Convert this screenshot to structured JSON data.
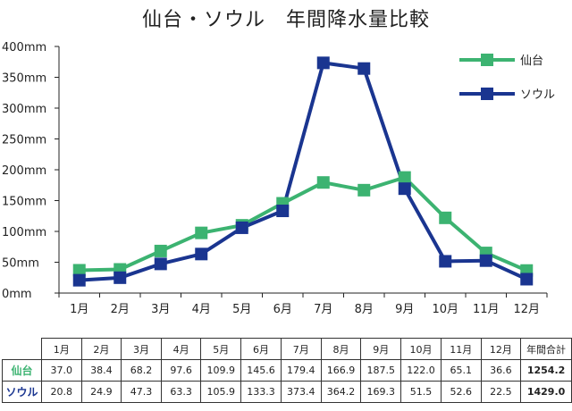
{
  "title": "仙台・ソウル　年間降水量比較",
  "chart_data": {
    "type": "line",
    "title": "仙台・ソウル　年間降水量比較",
    "categories": [
      "1月",
      "2月",
      "3月",
      "4月",
      "5月",
      "6月",
      "7月",
      "8月",
      "9月",
      "10月",
      "11月",
      "12月"
    ],
    "series": [
      {
        "name": "仙台",
        "color": "#3cb371",
        "values": [
          37.0,
          38.4,
          68.2,
          97.6,
          109.9,
          145.6,
          179.4,
          166.9,
          187.5,
          122.0,
          65.1,
          36.6
        ],
        "total": "1254.2"
      },
      {
        "name": "ソウル",
        "color": "#1a3590",
        "values": [
          20.8,
          24.9,
          47.3,
          63.3,
          105.9,
          133.3,
          373.4,
          364.2,
          169.3,
          51.5,
          52.6,
          22.5
        ],
        "total": "1429.0"
      }
    ],
    "yticks": [
      "0mm",
      "50mm",
      "100mm",
      "150mm",
      "200mm",
      "250mm",
      "300mm",
      "350mm",
      "400mm"
    ],
    "ylim": [
      0,
      400
    ],
    "grid": false,
    "legend": "top-right",
    "marker": "square"
  },
  "table": {
    "headers": [
      "1月",
      "2月",
      "3月",
      "4月",
      "5月",
      "6月",
      "7月",
      "8月",
      "9月",
      "10月",
      "11月",
      "12月",
      "年間合計"
    ],
    "rows": [
      {
        "label": "仙台",
        "color": "#3cb371",
        "cells": [
          "37.0",
          "38.4",
          "68.2",
          "97.6",
          "109.9",
          "145.6",
          "179.4",
          "166.9",
          "187.5",
          "122.0",
          "65.1",
          "36.6",
          "1254.2"
        ]
      },
      {
        "label": "ソウル",
        "color": "#1a3590",
        "cells": [
          "20.8",
          "24.9",
          "47.3",
          "63.3",
          "105.9",
          "133.3",
          "373.4",
          "364.2",
          "169.3",
          "51.5",
          "52.6",
          "22.5",
          "1429.0"
        ]
      }
    ]
  }
}
